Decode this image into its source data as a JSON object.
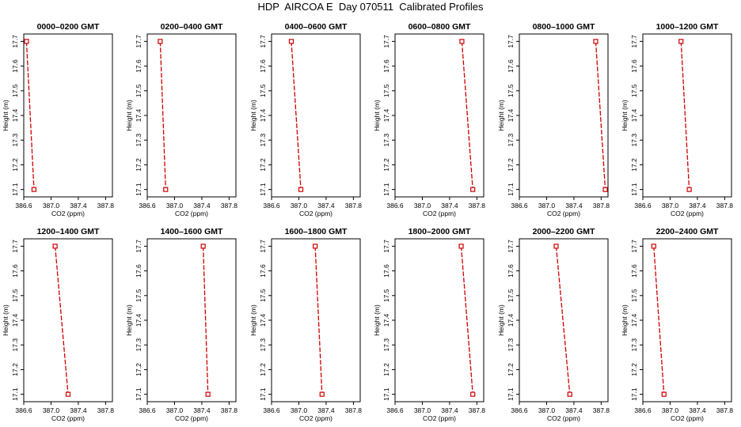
{
  "page": {
    "title": "HDP  AIRCOA E  Day 070511  Calibrated Profiles"
  },
  "chart_data": {
    "type": "line",
    "title": "HDP  AIRCOA E  Day 070511  Calibrated Profiles",
    "xlabel": "CO2 (ppm)",
    "ylabel": "Height (m)",
    "xlim": [
      386.6,
      387.9
    ],
    "ylim": [
      17.07,
      17.73
    ],
    "xticks": [
      "386.6",
      "387.0",
      "387.4",
      "387.8"
    ],
    "xtick_values": [
      386.6,
      387.0,
      387.4,
      387.8
    ],
    "yticks": [
      "17.1",
      "17.2",
      "17.3",
      "17.4",
      "17.5",
      "17.6",
      "17.7"
    ],
    "ytick_values": [
      17.1,
      17.2,
      17.3,
      17.4,
      17.5,
      17.6,
      17.7
    ],
    "line_color": "#d00000",
    "panels": [
      {
        "title": "0000–0200 GMT",
        "points": [
          {
            "x": 386.64,
            "y": 17.7
          },
          {
            "x": 386.75,
            "y": 17.1
          }
        ]
      },
      {
        "title": "0200–0400 GMT",
        "points": [
          {
            "x": 386.79,
            "y": 17.7
          },
          {
            "x": 386.87,
            "y": 17.1
          }
        ]
      },
      {
        "title": "0400–0600 GMT",
        "points": [
          {
            "x": 386.89,
            "y": 17.7
          },
          {
            "x": 387.03,
            "y": 17.1
          }
        ]
      },
      {
        "title": "0600–0800 GMT",
        "points": [
          {
            "x": 387.58,
            "y": 17.7
          },
          {
            "x": 387.74,
            "y": 17.1
          }
        ]
      },
      {
        "title": "0800–1000 GMT",
        "points": [
          {
            "x": 387.72,
            "y": 17.7
          },
          {
            "x": 387.86,
            "y": 17.1
          }
        ]
      },
      {
        "title": "1000–1200 GMT",
        "points": [
          {
            "x": 387.16,
            "y": 17.7
          },
          {
            "x": 387.28,
            "y": 17.1
          }
        ]
      },
      {
        "title": "1200–1400 GMT",
        "points": [
          {
            "x": 387.06,
            "y": 17.7
          },
          {
            "x": 387.25,
            "y": 17.1
          }
        ]
      },
      {
        "title": "1400–1600 GMT",
        "points": [
          {
            "x": 387.42,
            "y": 17.7
          },
          {
            "x": 387.49,
            "y": 17.1
          }
        ]
      },
      {
        "title": "1600–1800 GMT",
        "points": [
          {
            "x": 387.24,
            "y": 17.7
          },
          {
            "x": 387.34,
            "y": 17.1
          }
        ]
      },
      {
        "title": "1800–2000 GMT",
        "points": [
          {
            "x": 387.57,
            "y": 17.7
          },
          {
            "x": 387.74,
            "y": 17.1
          }
        ]
      },
      {
        "title": "2000–2200 GMT",
        "points": [
          {
            "x": 387.14,
            "y": 17.7
          },
          {
            "x": 387.34,
            "y": 17.1
          }
        ]
      },
      {
        "title": "2200–2400 GMT",
        "points": [
          {
            "x": 386.76,
            "y": 17.7
          },
          {
            "x": 386.91,
            "y": 17.1
          }
        ]
      }
    ]
  }
}
